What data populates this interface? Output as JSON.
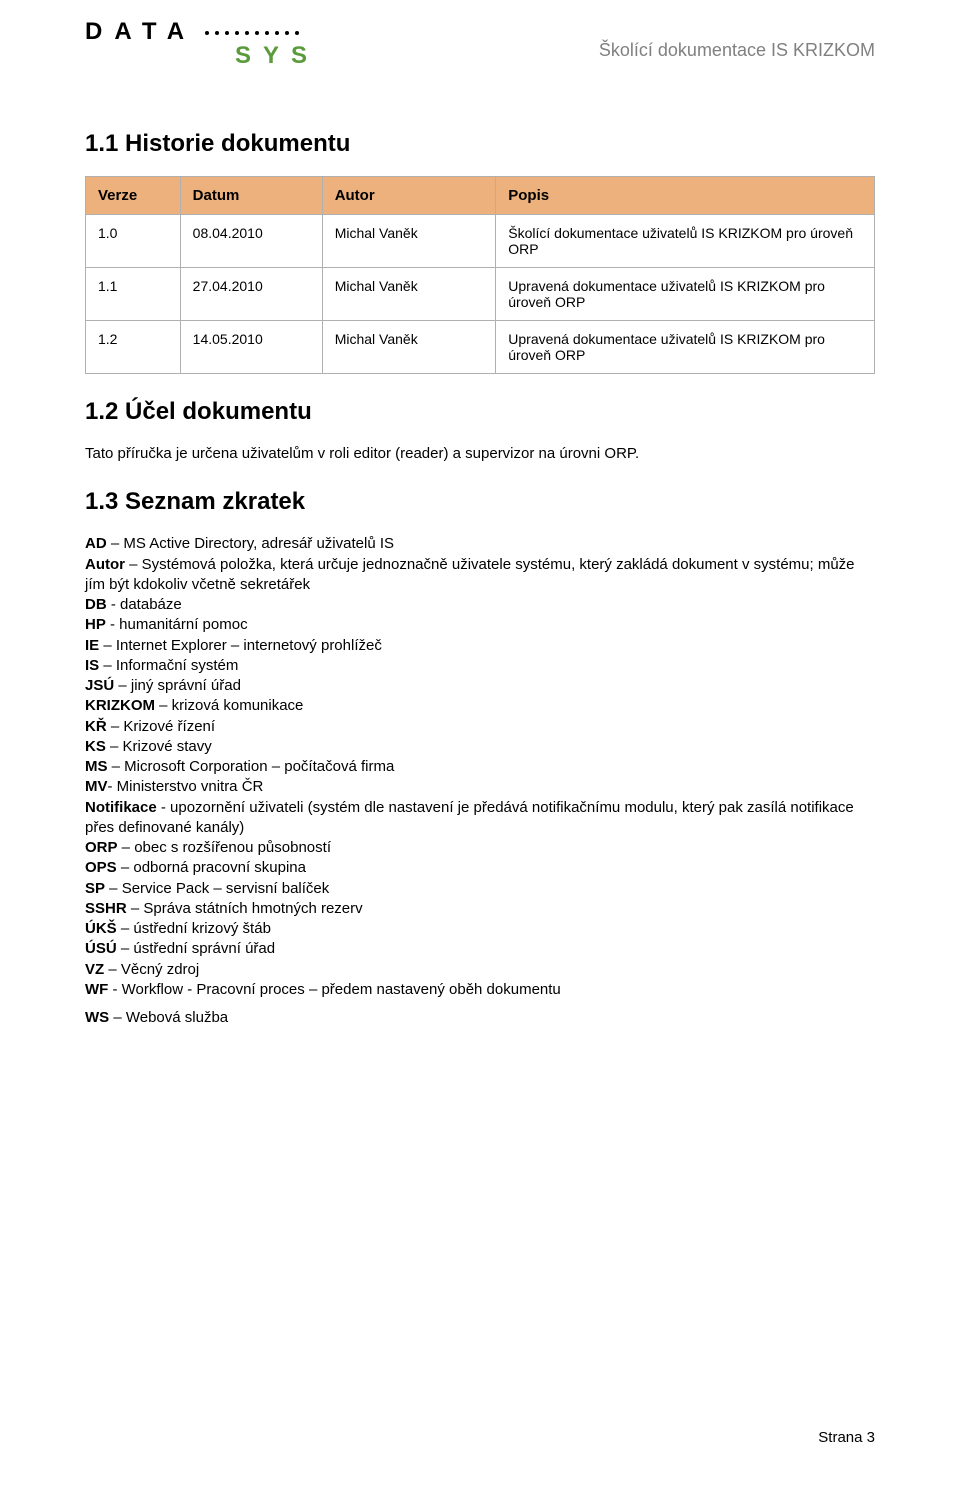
{
  "header": {
    "logo_line1": "DATA",
    "logo_line2": "SYS",
    "right_text": "Školící dokumentace IS KRIZKOM"
  },
  "section1": {
    "heading": "1.1  Historie dokumentu",
    "table": {
      "header_bg": "#ecb17c",
      "columns": [
        "Verze",
        "Datum",
        "Autor",
        "Popis"
      ],
      "col_widths": [
        "12%",
        "18%",
        "22%",
        "48%"
      ],
      "rows": [
        [
          "1.0",
          "08.04.2010",
          "Michal Vaněk",
          "Školící dokumentace uživatelů IS KRIZKOM pro úroveň ORP"
        ],
        [
          "1.1",
          "27.04.2010",
          "Michal Vaněk",
          "Upravená dokumentace uživatelů IS KRIZKOM pro úroveň ORP"
        ],
        [
          "1.2",
          "14.05.2010",
          "Michal Vaněk",
          "Upravená dokumentace uživatelů IS KRIZKOM pro úroveň ORP"
        ]
      ]
    }
  },
  "section2": {
    "heading": "1.2  Účel dokumentu",
    "body": "Tato příručka je určena uživatelům v roli editor (reader) a supervizor na úrovni ORP."
  },
  "section3": {
    "heading": "1.3  Seznam zkratek",
    "items": [
      {
        "abbr": "AD",
        "sep": " – ",
        "text": "MS Active Directory, adresář uživatelů IS"
      },
      {
        "abbr": "Autor",
        "sep": " – ",
        "text": "Systémová položka, která určuje jednoznačně uživatele systému, který zakládá dokument v systému; může jím být kdokoliv včetně sekretářek"
      },
      {
        "abbr": "DB",
        "sep": " - ",
        "text": "databáze"
      },
      {
        "abbr": "HP",
        "sep": " - ",
        "text": "humanitární pomoc"
      },
      {
        "abbr": "IE",
        "sep": " – ",
        "text": "Internet Explorer – internetový prohlížeč"
      },
      {
        "abbr": "IS",
        "sep": " – ",
        "text": "Informační systém"
      },
      {
        "abbr": "JSÚ",
        "sep": " – ",
        "text": "jiný správní úřad"
      },
      {
        "abbr": "KRIZKOM",
        "sep": " – ",
        "text": "krizová komunikace"
      },
      {
        "abbr": "KŘ",
        "sep": " – ",
        "text": "Krizové řízení"
      },
      {
        "abbr": "KS",
        "sep": " – ",
        "text": "Krizové stavy"
      },
      {
        "abbr": "MS",
        "sep": " – ",
        "text": "Microsoft Corporation – počítačová firma"
      },
      {
        "abbr": "MV",
        "sep": "- ",
        "text": "Ministerstvo vnitra ČR"
      },
      {
        "abbr": "Notifikace",
        "sep": " -  ",
        "text": "upozornění uživateli (systém dle nastavení je předává notifikačnímu modulu, který pak zasílá notifikace přes definované kanály)"
      },
      {
        "abbr": "ORP",
        "sep": " – ",
        "text": "obec s rozšířenou působností"
      },
      {
        "abbr": "OPS",
        "sep": " – ",
        "text": "odborná pracovní skupina"
      },
      {
        "abbr": "SP",
        "sep": " – ",
        "text": "Service Pack – servisní balíček"
      },
      {
        "abbr": "SSHR",
        "sep": " – ",
        "text": "Správa státních hmotných rezerv"
      },
      {
        "abbr": "ÚKŠ",
        "sep": " – ",
        "text": "ústřední krizový štáb"
      },
      {
        "abbr": "ÚSÚ",
        "sep": " – ",
        "text": "ústřední správní úřad"
      },
      {
        "abbr": "VZ",
        "sep": " – ",
        "text": "Věcný zdroj"
      },
      {
        "abbr": "WF",
        "sep": " - ",
        "text": "Workflow - Pracovní proces – předem nastavený oběh dokumentu"
      },
      {
        "abbr": "WS",
        "sep": " – ",
        "text": "Webová služba",
        "gap": true
      }
    ]
  },
  "footer": {
    "page_label": "Strana 3"
  },
  "colors": {
    "logo_green": "#5b9b3b",
    "header_gray": "#808080",
    "table_border": "#b0b0b0"
  }
}
